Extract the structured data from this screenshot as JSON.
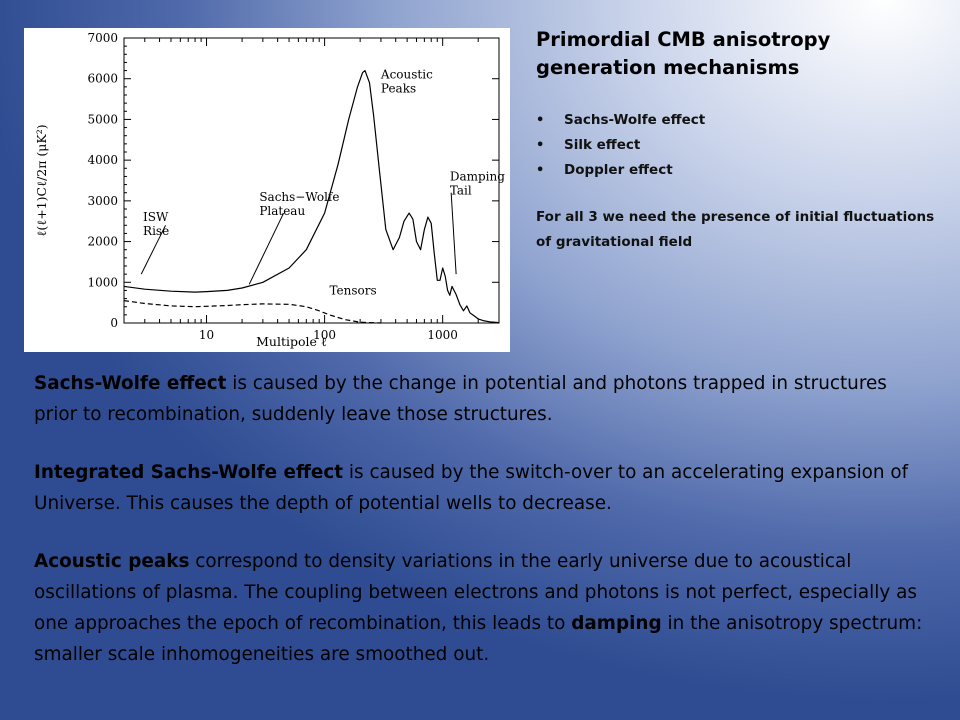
{
  "side_panel": {
    "title": "Primordial CMB anisotropy generation mechanisms",
    "bullets": [
      "Sachs-Wolfe  effect",
      "Silk effect",
      "Doppler effect"
    ],
    "bullet_glyph": "•",
    "note": "For all 3 we need the presence of initial fluctuations of gravitational field"
  },
  "paragraphs": [
    {
      "term": "Sachs-Wolfe effect",
      "text": " is caused by the change in potential and photons trapped in structures prior to recombination, suddenly leave those structures."
    },
    {
      "term": "Integrated Sachs-Wolfe effect",
      "text": " is caused by the switch-over to an accelerating expansion of Universe. This causes the depth of potential wells to decrease."
    },
    {
      "term": "Acoustic peaks",
      "text": "  correspond to density variations in the early universe due to acoustical oscillations of plasma. The coupling between electrons and photons is not perfect, especially as one approaches the epoch of recombination, this leads to ",
      "term2": "damping",
      "text2": " in the anisotropy spectrum: smaller scale inhomogeneities are smoothed out."
    }
  ],
  "chart_data": {
    "type": "line",
    "xlabel": "Multipole ℓ",
    "ylabel": "ℓ(ℓ+1)Cℓ/2π  (μK²)",
    "x_scale": "log",
    "xlim": [
      2,
      3000
    ],
    "ylim": [
      0,
      7000
    ],
    "xticks": [
      "10",
      "100",
      "1000"
    ],
    "yticks": [
      "0",
      "1000",
      "2000",
      "3000",
      "4000",
      "5000",
      "6000",
      "7000"
    ],
    "series": [
      {
        "name": "",
        "style": "solid",
        "x": [
          2,
          3,
          5,
          8,
          10,
          15,
          20,
          30,
          50,
          70,
          100,
          130,
          160,
          190,
          210,
          220,
          240,
          260,
          290,
          330,
          380,
          430,
          470,
          520,
          560,
          600,
          650,
          700,
          750,
          800,
          850,
          900,
          950,
          1000,
          1050,
          1100,
          1150,
          1200,
          1300,
          1400,
          1500,
          1600,
          1700,
          1800,
          2000,
          2200,
          2500,
          3000
        ],
        "y": [
          900,
          830,
          780,
          760,
          770,
          800,
          860,
          1000,
          1350,
          1800,
          2700,
          3900,
          5000,
          5800,
          6150,
          6200,
          5900,
          5100,
          3800,
          2300,
          1800,
          2100,
          2500,
          2700,
          2550,
          2000,
          1800,
          2300,
          2600,
          2450,
          1700,
          1050,
          1050,
          1350,
          1150,
          800,
          680,
          900,
          700,
          450,
          300,
          420,
          250,
          200,
          100,
          60,
          30,
          10
        ]
      },
      {
        "name": "",
        "style": "dashed",
        "x": [
          2,
          3,
          5,
          8,
          10,
          15,
          20,
          30,
          50,
          70,
          90,
          110,
          150,
          200,
          300
        ],
        "y": [
          550,
          480,
          420,
          400,
          410,
          430,
          450,
          470,
          460,
          400,
          300,
          200,
          80,
          20,
          0
        ]
      }
    ],
    "annotations": [
      {
        "text": [
          "Acoustic",
          "Peaks"
        ],
        "x": 300,
        "y": 6000
      },
      {
        "text": [
          "Sachs−Wolfe",
          "Plateau"
        ],
        "x": 28,
        "y": 3000
      },
      {
        "text": [
          "Damping",
          "Tail"
        ],
        "x": 1150,
        "y": 3500
      },
      {
        "text": [
          "ISW",
          "Rise"
        ],
        "x": 2.9,
        "y": 2500
      },
      {
        "text": [
          "Tensors"
        ],
        "x": 110,
        "y": 700
      }
    ]
  }
}
